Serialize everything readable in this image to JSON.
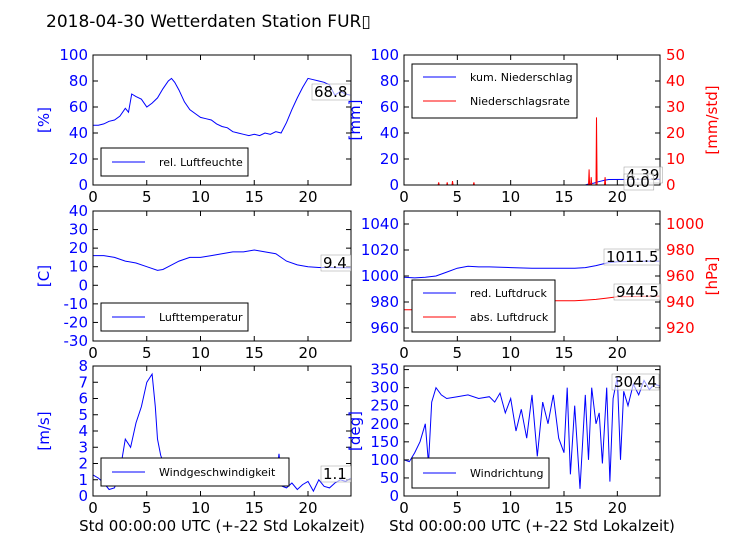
{
  "figure_title": "2018-04-30 Wetterdaten Station FUR",
  "figure_title_suffix": "▯",
  "colors": {
    "blue": "#0000ff",
    "red": "#ff0000",
    "black": "#000000"
  },
  "chart_data": [
    {
      "type": "line",
      "ylabel": "[%]",
      "xlim": [
        0,
        24
      ],
      "ylim": [
        0,
        100
      ],
      "yticks": [
        0,
        20,
        40,
        60,
        80,
        100
      ],
      "xticks": [
        0,
        5,
        10,
        15,
        20
      ],
      "xlabel": "",
      "legend_position": "lower-left",
      "series": [
        {
          "name": "rel. Luftfeuchte",
          "color": "#0000ff",
          "x": [
            0,
            0.5,
            1,
            1.5,
            2,
            2.5,
            3,
            3.3,
            3.6,
            4,
            4.5,
            5,
            5.5,
            6,
            6.5,
            7,
            7.3,
            7.6,
            8,
            8.5,
            9,
            9.5,
            10,
            10.5,
            11,
            11.5,
            12,
            12.5,
            13,
            13.5,
            14,
            14.5,
            15,
            15.5,
            16,
            16.5,
            17,
            17.5,
            18,
            18.5,
            19,
            19.5,
            20,
            20.5,
            21,
            21.5,
            22,
            22.5,
            23,
            23.5,
            24
          ],
          "y": [
            46,
            46,
            47,
            49,
            50,
            53,
            59,
            56,
            70,
            68,
            66,
            60,
            63,
            67,
            74,
            80,
            82,
            79,
            73,
            64,
            58,
            55,
            52,
            51,
            50,
            47,
            45,
            44,
            41,
            40,
            39,
            38,
            39,
            38,
            40,
            39,
            41,
            40,
            48,
            58,
            67,
            75,
            82,
            81,
            80,
            79,
            77,
            69,
            72,
            70,
            69
          ]
        }
      ],
      "end_label": "68.8"
    },
    {
      "type": "line",
      "ylabel": "[mm]",
      "y2label": "[mm/std]",
      "xlim": [
        0,
        24
      ],
      "ylim": [
        0,
        100
      ],
      "y2lim": [
        0,
        50
      ],
      "yticks": [
        0,
        20,
        40,
        60,
        80,
        100
      ],
      "y2ticks": [
        0,
        10,
        20,
        30,
        40,
        50
      ],
      "xticks": [
        0,
        5,
        10,
        15,
        20
      ],
      "xlabel": "",
      "legend_position": "upper-left",
      "series": [
        {
          "name": "kum. Niederschlag",
          "color": "#0000ff",
          "axis": "left",
          "x": [
            0,
            17,
            17.3,
            17.8,
            18.2,
            18.8,
            19.2,
            24
          ],
          "y": [
            0,
            0,
            0.8,
            1.5,
            2.5,
            3.6,
            4.2,
            4.39
          ]
        },
        {
          "name": "Niederschlagsrate",
          "color": "#ff0000",
          "axis": "right",
          "x": [
            0,
            3.2,
            3.25,
            3.3,
            4.0,
            4.05,
            4.1,
            4.5,
            4.55,
            4.6,
            6.5,
            6.55,
            6.6,
            17,
            17.3,
            17.35,
            17.4,
            17.5,
            17.55,
            17.6,
            18.0,
            18.05,
            18.1,
            18.8,
            18.85,
            18.9,
            24
          ],
          "y": [
            0,
            0,
            1,
            0,
            0,
            1,
            0,
            0,
            1.5,
            0,
            0,
            1,
            0,
            0,
            0,
            6,
            0,
            0,
            3,
            0,
            0,
            26,
            0,
            0,
            3,
            0,
            0
          ]
        }
      ],
      "end_labels": [
        "4.39",
        "0.0"
      ]
    },
    {
      "type": "line",
      "ylabel": "[C]",
      "xlim": [
        0,
        24
      ],
      "ylim": [
        -30,
        40
      ],
      "yticks": [
        -30,
        -20,
        -10,
        0,
        10,
        20,
        30,
        40
      ],
      "xticks": [
        0,
        5,
        10,
        15,
        20
      ],
      "xlabel": "",
      "legend_position": "lower-left",
      "series": [
        {
          "name": "Lufttemperatur",
          "color": "#0000ff",
          "x": [
            0,
            1,
            2,
            3,
            4,
            5,
            6,
            6.5,
            7,
            8,
            9,
            10,
            11,
            12,
            13,
            14,
            15,
            16,
            17,
            17.5,
            18,
            19,
            20,
            21,
            22,
            23,
            24
          ],
          "y": [
            16,
            16,
            15,
            13,
            12,
            10,
            8,
            8.5,
            10,
            13,
            15,
            15,
            16,
            17,
            18,
            18,
            19,
            18,
            17,
            15,
            13,
            11,
            10,
            9.6,
            9.6,
            9.4,
            9.4
          ]
        }
      ],
      "end_label": "9.4"
    },
    {
      "type": "line",
      "ylabel": "",
      "y2label": "[hPa]",
      "xlim": [
        0,
        24
      ],
      "ylim": [
        950,
        1050
      ],
      "y2lim": [
        910,
        1010
      ],
      "yticks": [
        960,
        980,
        1000,
        1020,
        1040
      ],
      "y2ticks": [
        920,
        940,
        960,
        980,
        1000
      ],
      "xticks": [
        0,
        5,
        10,
        15,
        20
      ],
      "xlabel": "",
      "legend_position": "lower-left",
      "series": [
        {
          "name": "red. Luftdruck",
          "color": "#0000ff",
          "axis": "left",
          "x": [
            0,
            1,
            2,
            3,
            4,
            5,
            6,
            7,
            8,
            10,
            12,
            14,
            16,
            17,
            18,
            19,
            20,
            22,
            24
          ],
          "y": [
            999,
            998.5,
            999,
            1000,
            1003,
            1006,
            1007.5,
            1007,
            1007,
            1006.5,
            1006,
            1006,
            1006,
            1006.5,
            1008,
            1010,
            1011,
            1011.3,
            1011.5
          ]
        },
        {
          "name": "abs. Luftdruck",
          "color": "#ff0000",
          "axis": "right",
          "x": [
            0,
            1,
            2,
            3,
            4,
            5,
            6,
            7,
            8,
            10,
            12,
            14,
            16,
            17,
            18,
            19,
            20,
            22,
            24
          ],
          "y": [
            934,
            934,
            935,
            936,
            939,
            941,
            942.5,
            942,
            942,
            941.5,
            941,
            941,
            941,
            941.5,
            942,
            943,
            944,
            944.3,
            944.5
          ]
        }
      ],
      "end_labels": [
        "1011.5",
        "944.5"
      ]
    },
    {
      "type": "line",
      "ylabel": "[m/s]",
      "xlim": [
        0,
        24
      ],
      "ylim": [
        0,
        8
      ],
      "yticks": [
        0,
        1,
        2,
        3,
        4,
        5,
        6,
        7,
        8
      ],
      "xticks": [
        0,
        5,
        10,
        15,
        20
      ],
      "xlabel": "Std 00:00:00 UTC (+-22 Std Lokalzeit)",
      "legend_position": "lower-left",
      "series": [
        {
          "name": "Windgeschwindigkeit",
          "color": "#0000ff",
          "x": [
            0,
            0.5,
            1,
            1.5,
            2,
            2.5,
            3,
            3.5,
            4,
            4.5,
            5,
            5.5,
            5.8,
            6,
            6.3,
            6.6,
            7,
            7.5,
            8,
            8.5,
            9,
            9.5,
            10,
            10.5,
            11,
            11.5,
            12,
            12.5,
            13,
            13.5,
            14,
            14.5,
            15,
            15.5,
            16,
            16.5,
            17,
            17.3,
            17.6,
            18,
            18.5,
            19,
            19.5,
            20,
            20.5,
            21,
            21.5,
            22,
            22.5,
            23,
            23.5,
            24
          ],
          "y": [
            1.3,
            1.1,
            0.8,
            0.4,
            0.5,
            1.5,
            3.5,
            3.0,
            4.5,
            5.5,
            7.0,
            7.5,
            5.5,
            3.5,
            2.5,
            2.0,
            1.5,
            1.0,
            1.8,
            1.2,
            1.5,
            1.0,
            1.4,
            0.8,
            1.6,
            0.9,
            1.3,
            0.7,
            1.5,
            0.8,
            1.4,
            0.9,
            1.2,
            0.8,
            1.1,
            0.7,
            1.0,
            2.6,
            0.6,
            0.5,
            0.8,
            0.4,
            0.7,
            0.9,
            0.3,
            1.0,
            0.6,
            0.5,
            0.8,
            1.0,
            0.9,
            1.1
          ]
        }
      ],
      "end_label": "1.1"
    },
    {
      "type": "line",
      "ylabel": "[deg]",
      "xlim": [
        0,
        24
      ],
      "ylim": [
        0,
        360
      ],
      "yticks": [
        0,
        50,
        100,
        150,
        200,
        250,
        300,
        350
      ],
      "xticks": [
        0,
        5,
        10,
        15,
        20
      ],
      "xlabel": "Std 00:00:00 UTC (+-22 Std Lokalzeit)",
      "legend_position": "lower-left",
      "series": [
        {
          "name": "Windrichtung",
          "color": "#0000ff",
          "x": [
            0,
            0.5,
            1,
            1.5,
            2,
            2.3,
            2.6,
            3,
            3.5,
            4,
            5,
            6,
            7,
            8,
            8.5,
            9,
            9.5,
            10,
            10.5,
            11,
            11.5,
            12,
            12.5,
            13,
            13.5,
            14,
            14.5,
            15,
            15.3,
            15.6,
            16,
            16.5,
            17,
            17.3,
            17.6,
            18,
            18.3,
            18.6,
            19,
            19.3,
            19.6,
            20,
            20.3,
            20.6,
            21,
            21.5,
            22,
            22.5,
            23,
            23.5,
            24
          ],
          "y": [
            100,
            95,
            120,
            150,
            200,
            90,
            260,
            300,
            280,
            270,
            275,
            280,
            270,
            275,
            260,
            285,
            230,
            270,
            180,
            240,
            160,
            280,
            110,
            260,
            200,
            280,
            160,
            120,
            300,
            60,
            250,
            20,
            280,
            100,
            300,
            200,
            230,
            90,
            300,
            40,
            270,
            330,
            100,
            290,
            250,
            310,
            280,
            320,
            295,
            310,
            304
          ]
        }
      ],
      "end_label": "304.4"
    }
  ]
}
